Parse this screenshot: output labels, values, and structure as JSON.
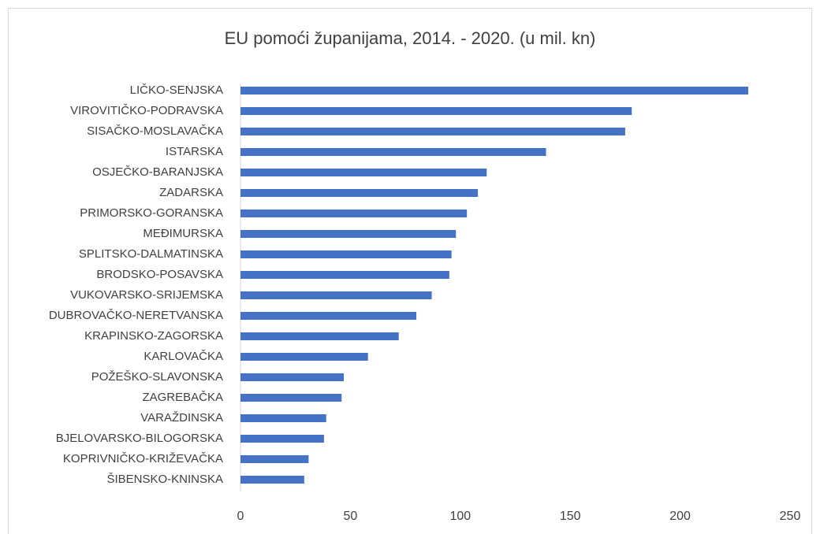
{
  "chart_data": {
    "type": "bar",
    "orientation": "horizontal",
    "title": "EU pomoći županijama, 2014. - 2020. (u mil. kn)",
    "categories": [
      "LIČKO-SENJSKA",
      "VIROVITIČKO-PODRAVSKA",
      "SISAČKO-MOSLAVAČKA",
      "ISTARSKA",
      "OSJEČKO-BARANJSKA",
      "ZADARSKA",
      "PRIMORSKO-GORANSKA",
      "MEĐIMURSKA",
      "SPLITSKO-DALMATINSKA",
      "BRODSKO-POSAVSKA",
      "VUKOVARSKO-SRIJEMSKA",
      "DUBROVAČKO-NERETVANSKA",
      "KRAPINSKO-ZAGORSKA",
      "KARLOVAČKA",
      "POŽEŠKO-SLAVONSKA",
      "ZAGREBAČKA",
      "VARAŽDINSKA",
      "BJELOVARSKO-BILOGORSKA",
      "KOPRIVNIČKO-KRIŽEVAČKA",
      "ŠIBENSKO-KNINSKA"
    ],
    "values": [
      231,
      178,
      175,
      139,
      112,
      108,
      103,
      98,
      96,
      95,
      87,
      80,
      72,
      58,
      47,
      46,
      39,
      38,
      31,
      29
    ],
    "color": "#4472c4",
    "xlim": [
      0,
      250
    ],
    "xticks": [
      0,
      50,
      100,
      150,
      200,
      250
    ],
    "grid": false
  }
}
